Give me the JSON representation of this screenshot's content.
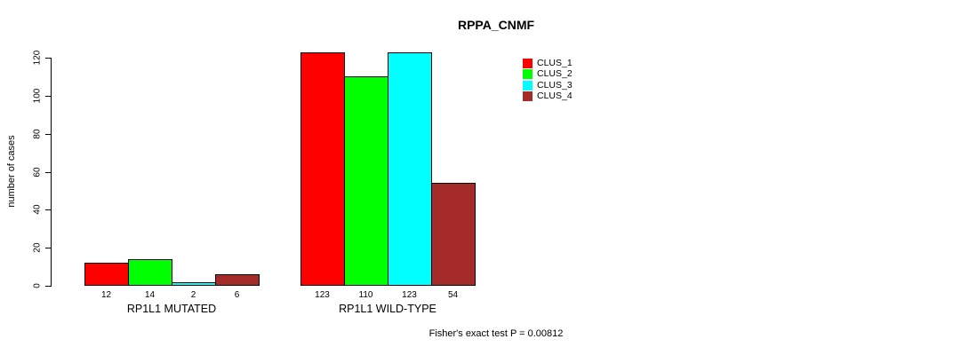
{
  "chart_data": {
    "type": "bar",
    "title": "RPPA_CNMF",
    "ylabel": "number of cases",
    "ylim": [
      0,
      120
    ],
    "yticks": [
      0,
      20,
      40,
      60,
      80,
      100,
      120
    ],
    "grid": false,
    "legend_position": "top-right",
    "bar_value_labels_shown": true,
    "groups": [
      {
        "label": "RP1L1 MUTATED",
        "values": [
          12,
          14,
          2,
          6
        ]
      },
      {
        "label": "RP1L1 WILD-TYPE",
        "values": [
          123,
          110,
          123,
          54
        ]
      }
    ],
    "series": [
      {
        "name": "CLUS_1",
        "color": "#ff0000"
      },
      {
        "name": "CLUS_2",
        "color": "#00ff00"
      },
      {
        "name": "CLUS_3",
        "color": "#00ffff"
      },
      {
        "name": "CLUS_4",
        "color": "#a52a2a"
      }
    ],
    "annotation": "Fisher's exact test P = 0.00812"
  },
  "colors": {
    "background": "#ffffff",
    "axis": "#000000",
    "text": "#000000"
  }
}
